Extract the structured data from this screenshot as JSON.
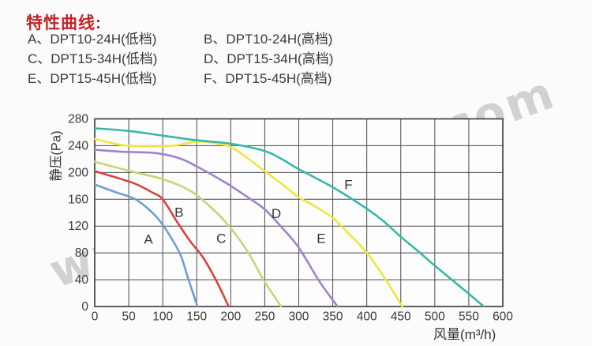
{
  "title": {
    "text": "特性曲线:",
    "color": "#c42428"
  },
  "legend": {
    "items": [
      {
        "label": "A、DPT10-24H(低档)"
      },
      {
        "label": "B、DPT10-24H(高档)"
      },
      {
        "label": "C、DPT15-34H(低档)"
      },
      {
        "label": "D、DPT15-34H(高档)"
      },
      {
        "label": "E、DPT15-45H(低档)"
      },
      {
        "label": "F、DPT15-45H(高档)"
      }
    ]
  },
  "watermark": {
    "text": "www.matemro.com",
    "color": "#c7c7c7"
  },
  "chart_data": {
    "type": "line",
    "title": "特性曲线",
    "xlabel": "风量(m³/h)",
    "ylabel": "静压(Pa)",
    "xlim": [
      0,
      600
    ],
    "ylim": [
      0,
      280
    ],
    "xticks": [
      0,
      50,
      100,
      150,
      200,
      250,
      300,
      350,
      400,
      450,
      500,
      550,
      600
    ],
    "yticks": [
      0,
      40,
      80,
      120,
      160,
      200,
      240,
      280
    ],
    "grid": true,
    "grid_color": "#4a4a4a",
    "axis_color": "#383838",
    "tick_label_color": "#3b3b3b",
    "curve_label_color": "#333333",
    "plot_bg": "#fdfdfd",
    "legend_position": "top-left-outside",
    "series": [
      {
        "name": "A",
        "model": "DPT10-24H(低档)",
        "color": "#6f9cd6",
        "label_pos": [
          79,
          101
        ],
        "points": [
          [
            0,
            182
          ],
          [
            30,
            171
          ],
          [
            60,
            160
          ],
          [
            85,
            140
          ],
          [
            100,
            122
          ],
          [
            115,
            98
          ],
          [
            127,
            75
          ],
          [
            138,
            40
          ],
          [
            151,
            0
          ]
        ]
      },
      {
        "name": "B",
        "model": "DPT10-24H(高档)",
        "color": "#d9423f",
        "label_pos": [
          124,
          141
        ],
        "points": [
          [
            0,
            202
          ],
          [
            30,
            193
          ],
          [
            60,
            183
          ],
          [
            85,
            170
          ],
          [
            100,
            160
          ],
          [
            120,
            128
          ],
          [
            140,
            98
          ],
          [
            160,
            72
          ],
          [
            180,
            36
          ],
          [
            197,
            0
          ]
        ]
      },
      {
        "name": "C",
        "model": "DPT15-34H(低档)",
        "color": "#c9d377",
        "label_pos": [
          186,
          102
        ],
        "points": [
          [
            0,
            216
          ],
          [
            30,
            208
          ],
          [
            60,
            200
          ],
          [
            100,
            190
          ],
          [
            140,
            173
          ],
          [
            174,
            145
          ],
          [
            200,
            117
          ],
          [
            226,
            80
          ],
          [
            248,
            40
          ],
          [
            274,
            0
          ]
        ]
      },
      {
        "name": "D",
        "model": "DPT15-34H(高档)",
        "color": "#a181cd",
        "label_pos": [
          267,
          139
        ],
        "points": [
          [
            0,
            234
          ],
          [
            40,
            231
          ],
          [
            90,
            229
          ],
          [
            125,
            221
          ],
          [
            150,
            209
          ],
          [
            175,
            195
          ],
          [
            200,
            180
          ],
          [
            225,
            163
          ],
          [
            250,
            145
          ],
          [
            275,
            118
          ],
          [
            300,
            88
          ],
          [
            330,
            38
          ],
          [
            357,
            0
          ]
        ]
      },
      {
        "name": "E",
        "model": "DPT15-45H(低档)",
        "color": "#f2e53f",
        "label_pos": [
          333,
          102
        ],
        "points": [
          [
            0,
            250
          ],
          [
            40,
            241
          ],
          [
            80,
            239
          ],
          [
            115,
            240
          ],
          [
            150,
            246
          ],
          [
            175,
            244
          ],
          [
            200,
            238
          ],
          [
            225,
            221
          ],
          [
            250,
            202
          ],
          [
            275,
            183
          ],
          [
            300,
            163
          ],
          [
            325,
            149
          ],
          [
            350,
            132
          ],
          [
            375,
            107
          ],
          [
            400,
            80
          ],
          [
            428,
            40
          ],
          [
            452,
            0
          ]
        ]
      },
      {
        "name": "F",
        "model": "DPT15-45H(高档)",
        "color": "#35b7a9",
        "label_pos": [
          373,
          182
        ],
        "points": [
          [
            0,
            266
          ],
          [
            50,
            262
          ],
          [
            100,
            255
          ],
          [
            150,
            248
          ],
          [
            200,
            243
          ],
          [
            250,
            232
          ],
          [
            275,
            220
          ],
          [
            300,
            205
          ],
          [
            350,
            178
          ],
          [
            400,
            146
          ],
          [
            425,
            127
          ],
          [
            450,
            104
          ],
          [
            475,
            83
          ],
          [
            500,
            61
          ],
          [
            525,
            40
          ],
          [
            550,
            19
          ],
          [
            572,
            0
          ]
        ]
      }
    ]
  }
}
